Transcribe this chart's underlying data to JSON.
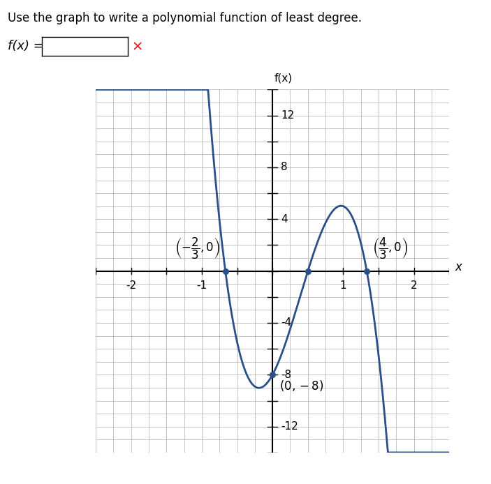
{
  "title_text": "Use the graph to write a polynomial function of least degree.",
  "fx_label": "f(x) =",
  "graph_xlabel": "x",
  "graph_ylabel": "f(x)",
  "curve_color": "#2a4f8a",
  "dot_color": "#2a4f8a",
  "grid_color_major": "#bbbbbb",
  "xlim": [
    -2.5,
    2.5
  ],
  "ylim": [
    -14,
    14
  ],
  "xticks": [
    -2,
    -1,
    1,
    2
  ],
  "yticks": [
    -12,
    -8,
    -4,
    4,
    8,
    12
  ],
  "label_fontsize": 11,
  "tick_fontsize": 11,
  "annot_fontsize": 12,
  "title_fontsize": 12,
  "figsize": [
    7.03,
    6.94
  ],
  "dpi": 100
}
